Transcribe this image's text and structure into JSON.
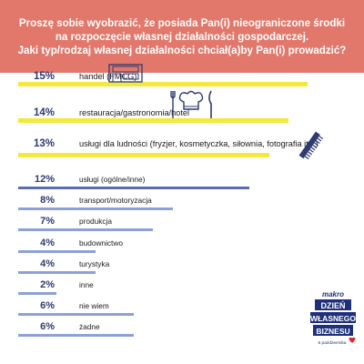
{
  "header": {
    "line1": "Proszę sobie wyobrazić, że posiada Pan(i) nieograniczone środki",
    "line2": "na rozpoczęcie własnej działalności gospodarczej.",
    "line3": "Jaki typ/rodzaj własnej działalności chciał(a)by Pan(i) prowadzić?"
  },
  "colors": {
    "header_bg": "#e2786b",
    "top_bar": "#f4e93a",
    "other_bar": "#8fa0d8",
    "other_bar_alt": "#5a6db0",
    "pct_text": "#2e3a70"
  },
  "chart_data": {
    "type": "bar",
    "orientation": "horizontal",
    "categories": [
      "handel (FMCG)",
      "restauracja/gastronomia/hotel",
      "usługi dla ludności (fryzjer, kosmetyczka, siłownia, fotografia itp.)",
      "usługi (ogólne/inne)",
      "transport/motoryzacja",
      "produkcja",
      "budownictwo",
      "turystyka",
      "inne",
      "nie wiem",
      "żadne"
    ],
    "values": [
      15,
      14,
      13,
      12,
      8,
      7,
      4,
      4,
      2,
      6,
      6
    ],
    "value_labels": [
      "15%",
      "14%",
      "13%",
      "12%",
      "8%",
      "7%",
      "4%",
      "4%",
      "2%",
      "6%",
      "6%"
    ],
    "unit": "%",
    "xlim": [
      0,
      16
    ],
    "highlighted_top": 3
  },
  "logo": {
    "brand": "makro",
    "line1": "DZIEŃ",
    "line2": "WŁASNEGO",
    "line3": "BIZNESU",
    "date": "5 października"
  },
  "icons": [
    "shop-icon",
    "chef-hat-cutlery-icon",
    "comb-icon"
  ]
}
